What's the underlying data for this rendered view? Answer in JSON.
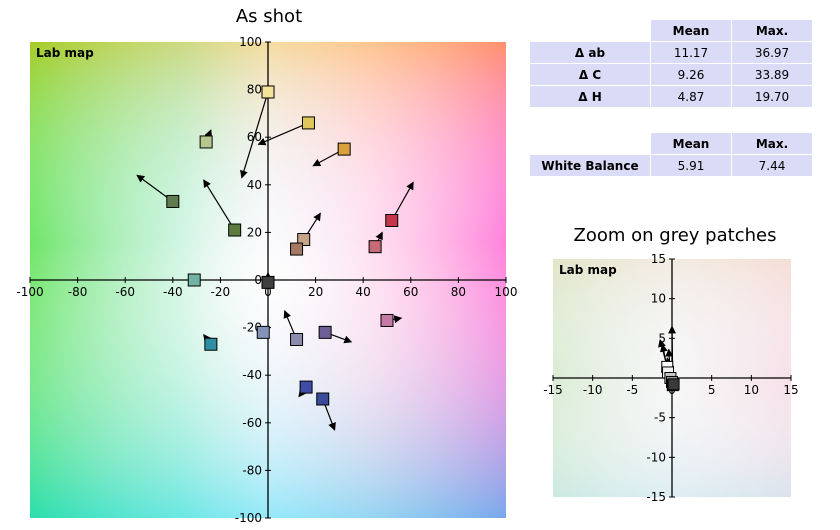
{
  "titles": {
    "main": "As shot",
    "zoom": "Zoom on grey patches"
  },
  "deltas_table": {
    "headers": [
      "",
      "Mean",
      "Max."
    ],
    "rows": [
      {
        "label": "Δ ab",
        "mean": "11.17",
        "max": "36.97"
      },
      {
        "label": "Δ C",
        "mean": "9.26",
        "max": "33.89"
      },
      {
        "label": "Δ H",
        "mean": "4.87",
        "max": "19.70"
      }
    ]
  },
  "wb_table": {
    "headers": [
      "",
      "Mean",
      "Max."
    ],
    "rows": [
      {
        "label": "White Balance",
        "mean": "5.91",
        "max": "7.44"
      }
    ]
  },
  "chart_data": [
    {
      "type": "scatter",
      "title": "As shot",
      "inner_label": "Lab map",
      "xlim": [
        -100,
        100
      ],
      "ylim": [
        -100,
        100
      ],
      "xticks": [
        -100,
        -80,
        -60,
        -40,
        -20,
        0,
        20,
        40,
        60,
        80,
        100
      ],
      "yticks": [
        -100,
        -80,
        -60,
        -40,
        -20,
        0,
        20,
        40,
        60,
        80,
        100
      ],
      "points": [
        {
          "x": 0,
          "y": 79,
          "tx": -11,
          "ty": 43,
          "color": "#f4e39a"
        },
        {
          "x": 17,
          "y": 66,
          "tx": -4,
          "ty": 57,
          "color": "#dfc75e"
        },
        {
          "x": 32,
          "y": 55,
          "tx": 19,
          "ty": 48,
          "color": "#d9a03e"
        },
        {
          "x": -26,
          "y": 58,
          "tx": -24,
          "ty": 63,
          "color": "#b5c78d"
        },
        {
          "x": -40,
          "y": 33,
          "tx": -55,
          "ty": 44,
          "color": "#5f7d4e"
        },
        {
          "x": -14,
          "y": 21,
          "tx": -27,
          "ty": 42,
          "color": "#5c7b3e"
        },
        {
          "x": 52,
          "y": 25,
          "tx": 61,
          "ty": 41,
          "color": "#c4364a"
        },
        {
          "x": 15,
          "y": 17,
          "tx": 22,
          "ty": 28,
          "color": "#c6a48a"
        },
        {
          "x": 12,
          "y": 13,
          "color": "#a57862"
        },
        {
          "x": 45,
          "y": 14,
          "tx": 48,
          "ty": 20,
          "color": "#c86a78"
        },
        {
          "x": -31,
          "y": 0,
          "color": "#73b3a4"
        },
        {
          "x": 0,
          "y": -1,
          "tx": 0,
          "ty": 3,
          "color": "#3e3e3e"
        },
        {
          "x": -2,
          "y": -22,
          "color": "#8292b8"
        },
        {
          "x": 12,
          "y": -25,
          "tx": 7,
          "ty": -13,
          "color": "#8b8bb0"
        },
        {
          "x": 24,
          "y": -22,
          "tx": 35,
          "ty": -26,
          "color": "#6c5f95"
        },
        {
          "x": 50,
          "y": -17,
          "tx": 56,
          "ty": -16,
          "color": "#c479a7"
        },
        {
          "x": -24,
          "y": -27,
          "tx": -27,
          "ty": -23,
          "color": "#2e8ea4"
        },
        {
          "x": 16,
          "y": -45,
          "tx": 13,
          "ty": -49,
          "color": "#404da8"
        },
        {
          "x": 23,
          "y": -50,
          "tx": 28,
          "ty": -63,
          "color": "#3a4b9c"
        }
      ]
    },
    {
      "type": "scatter",
      "title": "Zoom on grey patches",
      "inner_label": "Lab map",
      "xlim": [
        -15,
        15
      ],
      "ylim": [
        -15,
        15
      ],
      "xticks": [
        -15,
        -10,
        -5,
        0,
        5,
        10,
        15
      ],
      "yticks": [
        -15,
        -10,
        -5,
        0,
        5,
        10,
        15
      ],
      "points": [
        {
          "x": -0.6,
          "y": 1.4,
          "tx": -1.5,
          "ty": 4.8,
          "color": "#ffffff"
        },
        {
          "x": -0.5,
          "y": 0.7,
          "tx": -1.2,
          "ty": 4.2,
          "color": "#f2f2f2"
        },
        {
          "x": -0.2,
          "y": 0.0,
          "tx": -0.4,
          "ty": 3.6,
          "color": "#c8c8c8"
        },
        {
          "x": 0.0,
          "y": -0.5,
          "tx": -0.6,
          "ty": 2.5,
          "color": "#969696"
        },
        {
          "x": 0.1,
          "y": -0.9,
          "tx": 0.0,
          "ty": 6.5,
          "color": "#5e5e5e"
        },
        {
          "x": 0.2,
          "y": -0.8,
          "tx": -0.4,
          "ty": 2.2,
          "color": "#3a3a3a"
        }
      ]
    }
  ]
}
